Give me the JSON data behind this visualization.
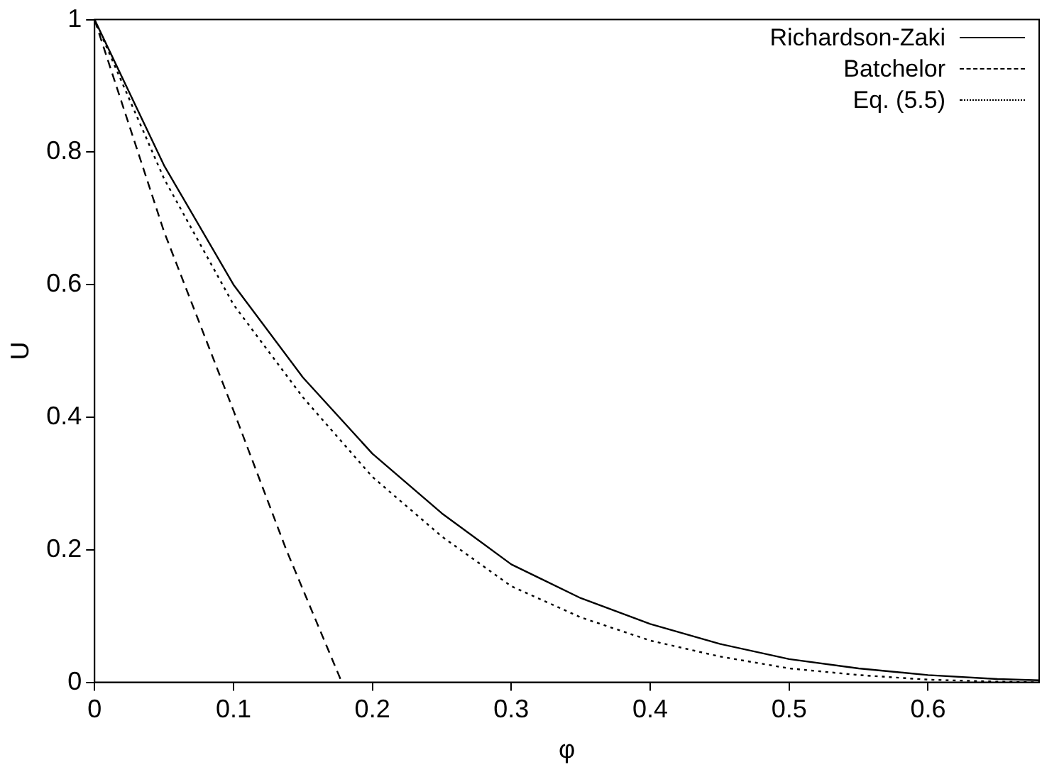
{
  "chart_data": {
    "type": "line",
    "xlabel": "φ",
    "ylabel": "U",
    "xlim": [
      0,
      0.68
    ],
    "xticks": [
      0,
      0.1,
      0.2,
      0.3,
      0.4,
      0.5,
      0.6
    ],
    "ylim": [
      0,
      1
    ],
    "yticks": [
      0,
      0.2,
      0.4,
      0.6,
      0.8,
      1
    ],
    "grid": false,
    "legend": "top right",
    "marker": "none",
    "series": [
      {
        "name": "Richardson-Zaki",
        "color": "#000000",
        "line_style": "solid",
        "x": [
          0,
          0.05,
          0.1,
          0.15,
          0.2,
          0.25,
          0.3,
          0.35,
          0.4,
          0.45,
          0.5,
          0.55,
          0.6,
          0.65,
          0.68
        ],
        "values": [
          1,
          0.78,
          0.6,
          0.46,
          0.345,
          0.255,
          0.178,
          0.127,
          0.088,
          0.058,
          0.035,
          0.021,
          0.011,
          0.005,
          0.003
        ]
      },
      {
        "name": "Batchelor",
        "color": "#000000",
        "line_style": "dashed",
        "x": [
          0,
          0.05,
          0.1,
          0.138,
          0.178
        ],
        "values": [
          1,
          0.68,
          0.41,
          0.2,
          0
        ]
      },
      {
        "name": "Eq. (5.5)",
        "color": "#000000",
        "line_style": "dotted",
        "x": [
          0,
          0.05,
          0.1,
          0.15,
          0.2,
          0.25,
          0.3,
          0.35,
          0.4,
          0.45,
          0.5,
          0.55,
          0.6,
          0.65,
          0.68
        ],
        "values": [
          1,
          0.76,
          0.57,
          0.43,
          0.31,
          0.22,
          0.145,
          0.098,
          0.063,
          0.039,
          0.021,
          0.011,
          0.004,
          0.001,
          0
        ]
      }
    ]
  }
}
